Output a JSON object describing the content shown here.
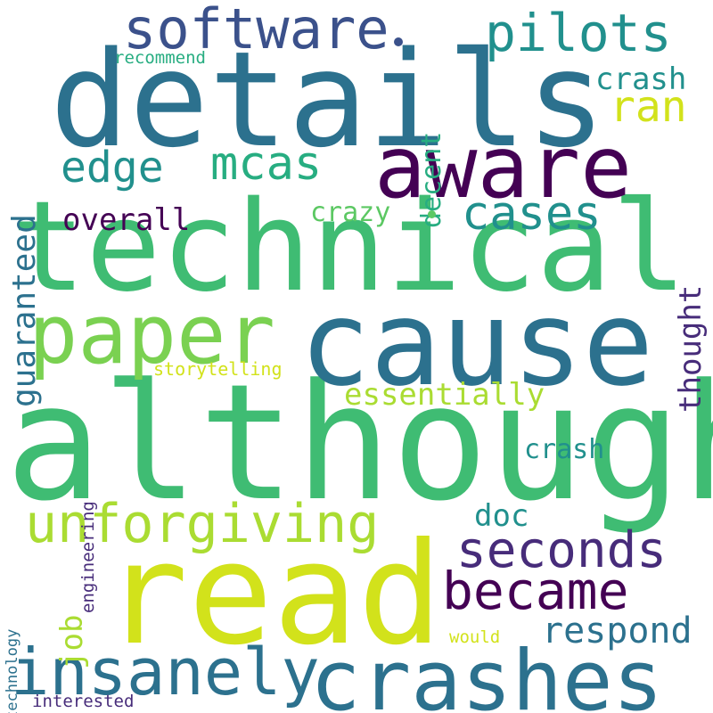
{
  "colors": {
    "background": "#ffffff",
    "palette": [
      "#440154",
      "#472c7a",
      "#3b518b",
      "#2c718e",
      "#21908d",
      "#27ad81",
      "#5cc863",
      "#aadc32",
      "#d2e21b"
    ]
  },
  "words": {
    "although": "although",
    "technical": "technical",
    "details": "details",
    "read": "read",
    "cause": "cause",
    "aware": "aware",
    "paper": "paper",
    "crashes": "crashes",
    "insanely": "insanely",
    "software": "software",
    "unforgiving": "unforgiving",
    "became": "became",
    "seconds": "seconds",
    "pilots": "pilots",
    "mcas": "mcas",
    "edge": "edge",
    "cases": "cases",
    "ran": "ran",
    "respond": "respond",
    "essentially": "essentially",
    "overall": "overall",
    "crazy": "crazy",
    "crash_top": "crash",
    "crash_mid": "crash",
    "doc": "doc",
    "job": "job",
    "guaranteed": "guaranteed",
    "decent": "decent",
    "thought": "thought",
    "storytelling": "storytelling",
    "recommend": "recommend",
    "engineering": "engineering",
    "technology": "technology",
    "would": "would",
    "interested": "interested"
  }
}
